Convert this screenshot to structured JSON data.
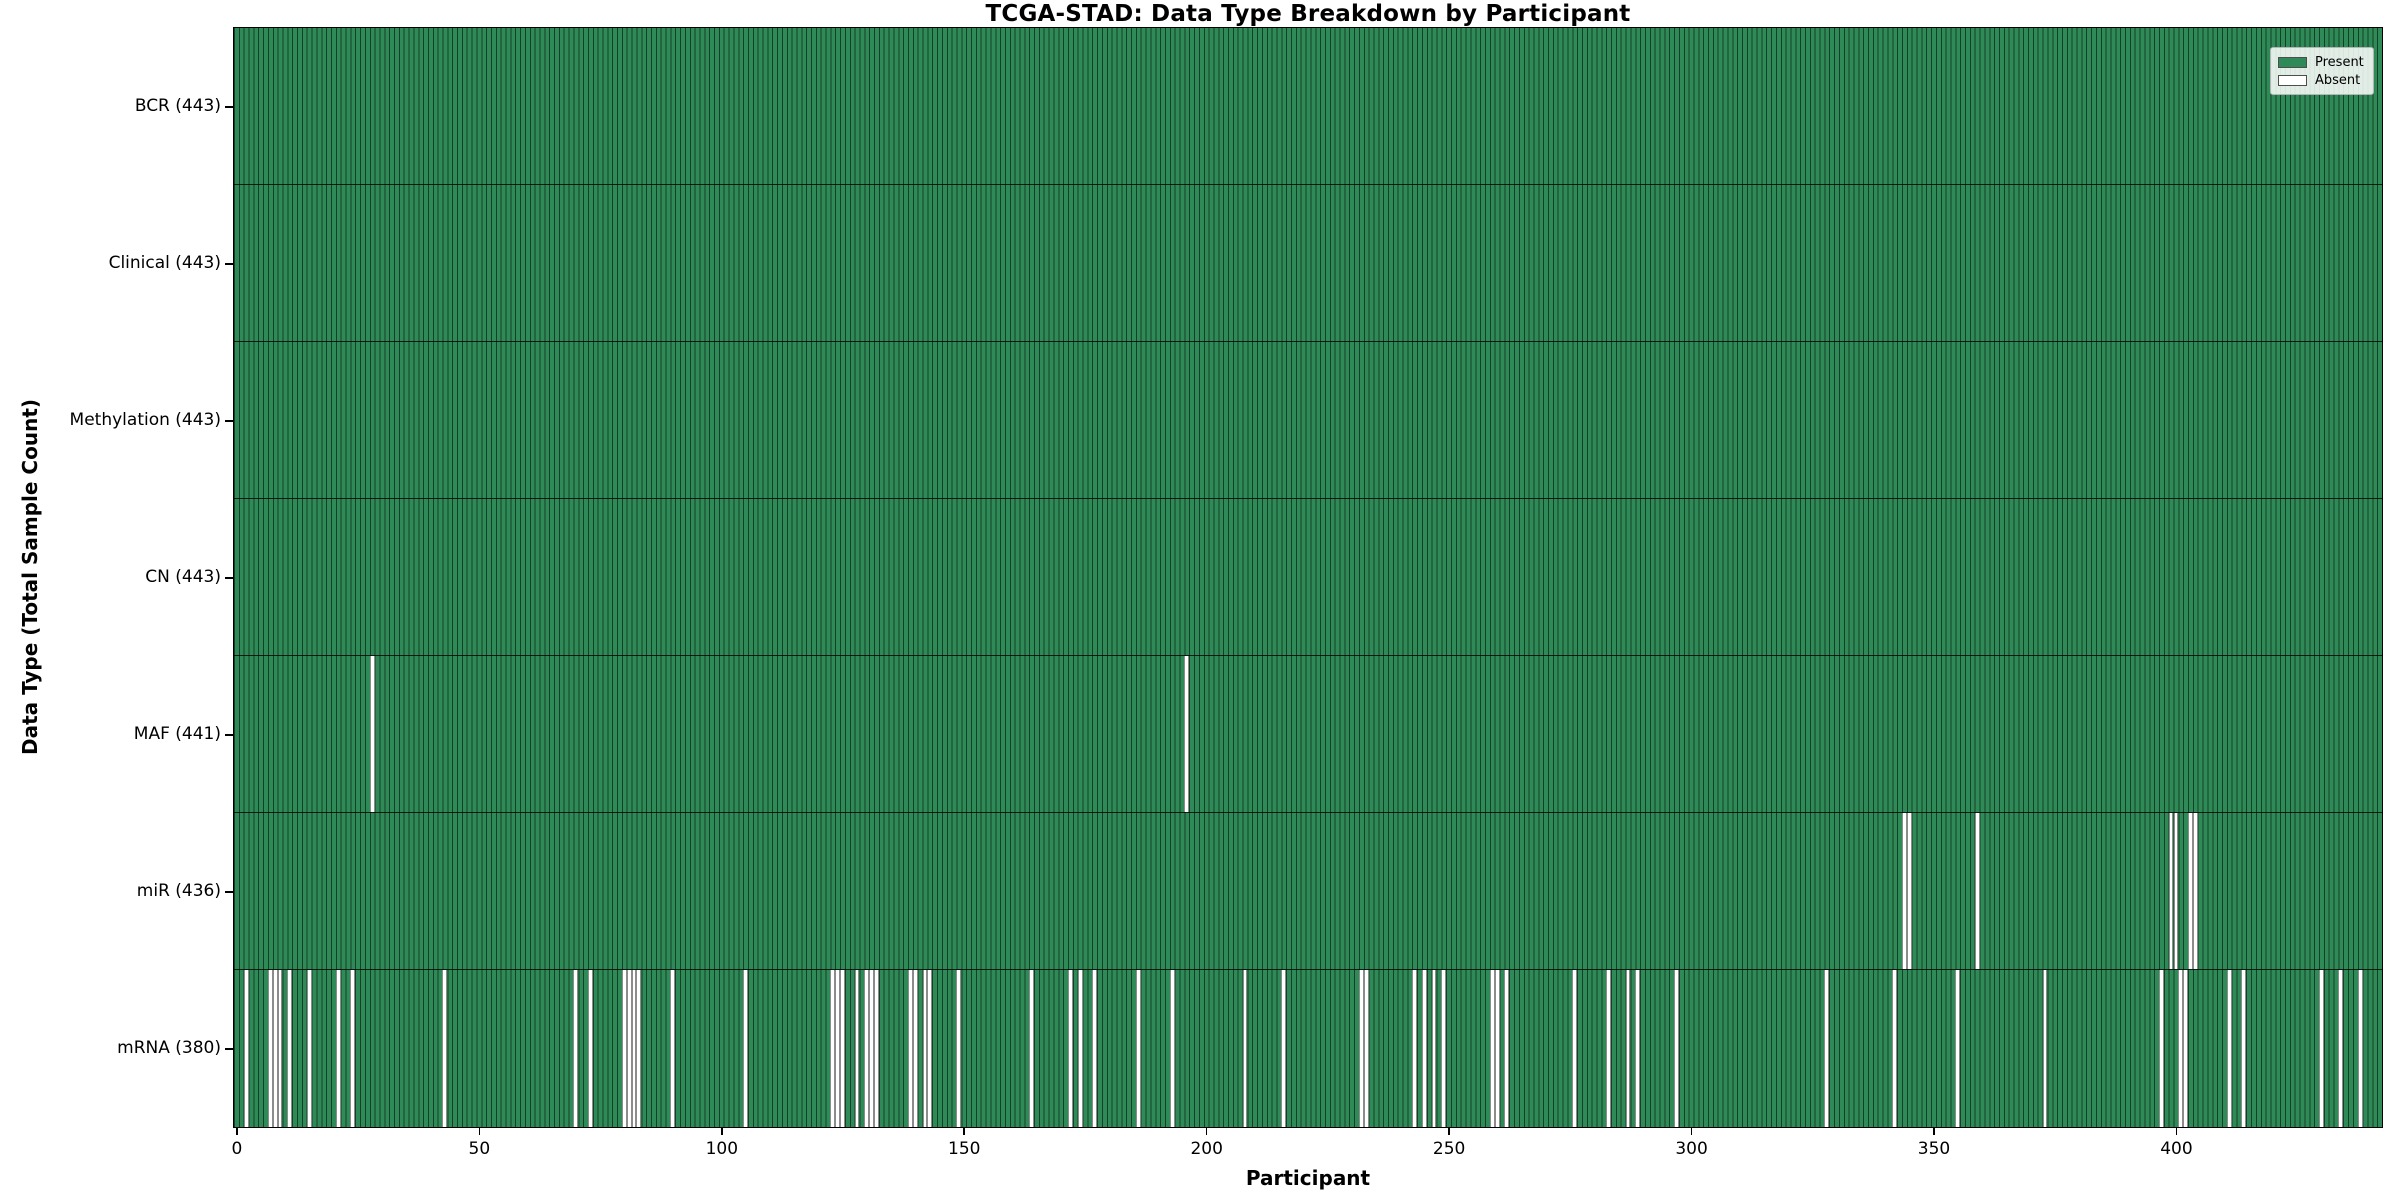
{
  "figure": {
    "title": "TCGA-STAD: Data Type Breakdown by Participant",
    "xlabel": "Participant",
    "ylabel": "Data Type (Total Sample Count)"
  },
  "legend": {
    "items": [
      {
        "label": "Present",
        "color": "#2e8b57"
      },
      {
        "label": "Absent",
        "color": "#ffffff"
      }
    ]
  },
  "chart_data": {
    "type": "heatmap",
    "title": "TCGA-STAD: Data Type Breakdown by Participant",
    "xlabel": "Participant",
    "ylabel": "Data Type (Total Sample Count)",
    "legend_position": "upper right",
    "grid": false,
    "n_participants": 443,
    "xlim": [
      -0.5,
      442.5
    ],
    "x_ticks": [
      0,
      50,
      100,
      150,
      200,
      250,
      300,
      350,
      400
    ],
    "present_color": "#2e8b57",
    "absent_color": "#ffffff",
    "bar_edge_color": "rgba(0,0,0,0.55)",
    "rows": [
      {
        "data_type": "BCR",
        "label": "BCR (443)",
        "total": 443,
        "absent": []
      },
      {
        "data_type": "Clinical",
        "label": "Clinical (443)",
        "total": 443,
        "absent": []
      },
      {
        "data_type": "Methylation",
        "label": "Methylation (443)",
        "total": 443,
        "absent": []
      },
      {
        "data_type": "CN",
        "label": "CN (443)",
        "total": 443,
        "absent": []
      },
      {
        "data_type": "MAF",
        "label": "MAF (441)",
        "total": 441,
        "absent": [
          28,
          196
        ]
      },
      {
        "data_type": "miR",
        "label": "miR (436)",
        "total": 436,
        "absent": [
          344,
          345,
          359,
          399,
          400,
          403,
          404
        ]
      },
      {
        "data_type": "mRNA",
        "label": "mRNA (380)",
        "total": 380,
        "absent": [
          2,
          7,
          8,
          9,
          11,
          15,
          21,
          24,
          43,
          70,
          73,
          80,
          81,
          82,
          83,
          90,
          105,
          123,
          124,
          125,
          128,
          130,
          131,
          132,
          139,
          140,
          142,
          143,
          149,
          164,
          172,
          174,
          177,
          186,
          193,
          208,
          216,
          232,
          233,
          243,
          245,
          247,
          249,
          259,
          260,
          262,
          276,
          283,
          287,
          289,
          297,
          328,
          342,
          355,
          373,
          397,
          401,
          402,
          411,
          414,
          430,
          434,
          438
        ]
      }
    ]
  }
}
